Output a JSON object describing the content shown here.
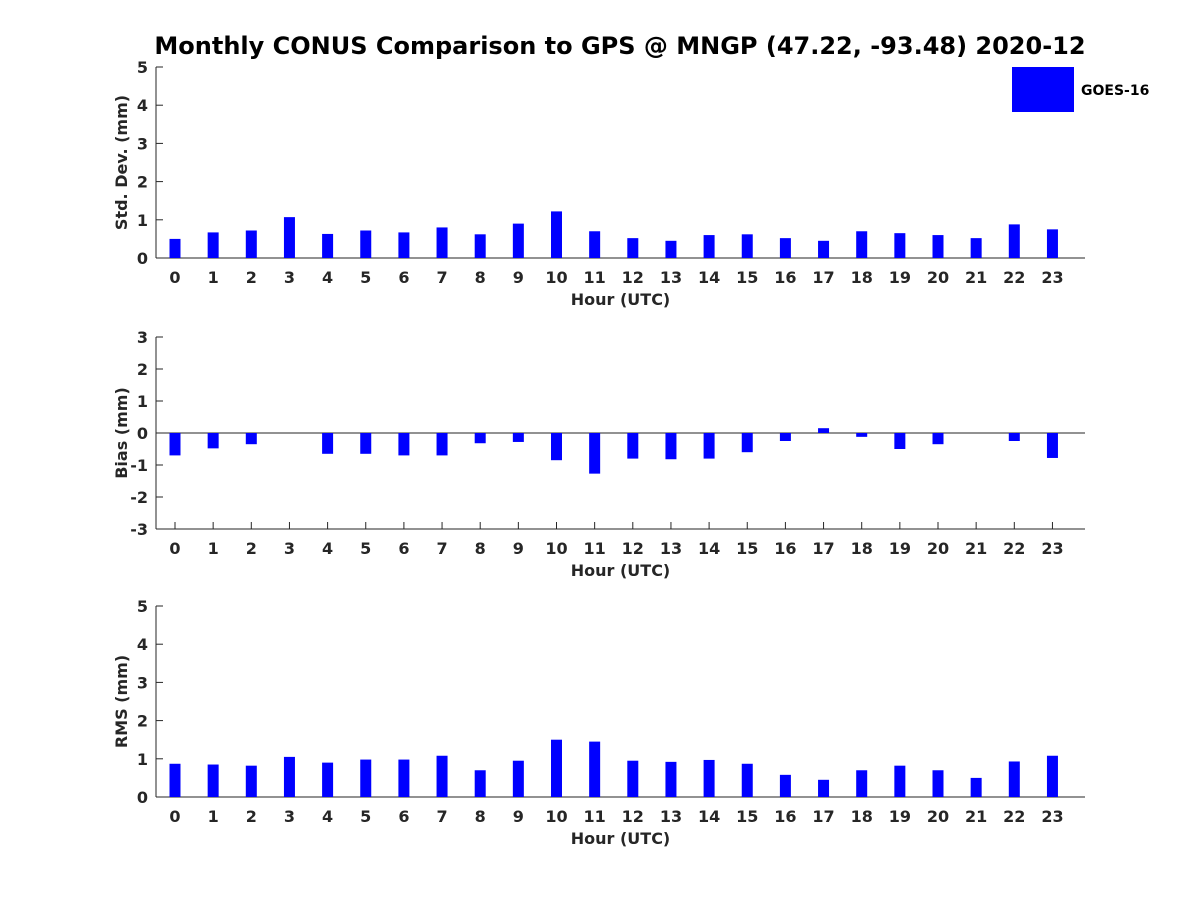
{
  "chart_data": {
    "title": "Monthly CONUS Comparison to GPS @ MNGP (47.22, -93.48) 2020-12",
    "legend": {
      "label": "GOES-16",
      "color": "#0000ff",
      "placement": "top-right"
    },
    "panels": [
      {
        "type": "bar",
        "id": "std",
        "xlabel": "Hour (UTC)",
        "ylabel": "Std. Dev. (mm)",
        "ylim": [
          0,
          5
        ],
        "yticks": [
          "0",
          "1",
          "2",
          "3",
          "4",
          "5"
        ],
        "zero_line": false,
        "categories": [
          "0",
          "1",
          "2",
          "3",
          "4",
          "5",
          "6",
          "7",
          "8",
          "9",
          "10",
          "11",
          "12",
          "13",
          "14",
          "15",
          "16",
          "17",
          "18",
          "19",
          "20",
          "21",
          "22",
          "23"
        ],
        "series": [
          {
            "name": "GOES-16",
            "values": [
              0.5,
              0.67,
              0.72,
              1.07,
              0.63,
              0.72,
              0.67,
              0.8,
              0.62,
              0.9,
              1.22,
              0.7,
              0.52,
              0.45,
              0.6,
              0.62,
              0.52,
              0.45,
              0.7,
              0.65,
              0.6,
              0.52,
              0.88,
              0.75
            ]
          }
        ]
      },
      {
        "type": "bar",
        "id": "bias",
        "xlabel": "Hour (UTC)",
        "ylabel": "Bias (mm)",
        "ylim": [
          -3,
          3
        ],
        "yticks": [
          "-3",
          "-2",
          "-1",
          "0",
          "1",
          "2",
          "3"
        ],
        "zero_line": true,
        "categories": [
          "0",
          "1",
          "2",
          "3",
          "4",
          "5",
          "6",
          "7",
          "8",
          "9",
          "10",
          "11",
          "12",
          "13",
          "14",
          "15",
          "16",
          "17",
          "18",
          "19",
          "20",
          "21",
          "22",
          "23"
        ],
        "series": [
          {
            "name": "GOES-16",
            "values": [
              -0.7,
              -0.48,
              -0.35,
              0.0,
              -0.65,
              -0.65,
              -0.7,
              -0.7,
              -0.32,
              -0.28,
              -0.85,
              -1.27,
              -0.8,
              -0.82,
              -0.8,
              -0.6,
              -0.25,
              0.15,
              -0.12,
              -0.5,
              -0.35,
              0.0,
              -0.25,
              -0.78
            ]
          }
        ]
      },
      {
        "type": "bar",
        "id": "rms",
        "xlabel": "Hour (UTC)",
        "ylabel": "RMS (mm)",
        "ylim": [
          0,
          5
        ],
        "yticks": [
          "0",
          "1",
          "2",
          "3",
          "4",
          "5"
        ],
        "zero_line": false,
        "categories": [
          "0",
          "1",
          "2",
          "3",
          "4",
          "5",
          "6",
          "7",
          "8",
          "9",
          "10",
          "11",
          "12",
          "13",
          "14",
          "15",
          "16",
          "17",
          "18",
          "19",
          "20",
          "21",
          "22",
          "23"
        ],
        "series": [
          {
            "name": "GOES-16",
            "values": [
              0.87,
              0.85,
              0.82,
              1.05,
              0.9,
              0.98,
              0.98,
              1.08,
              0.7,
              0.95,
              1.5,
              1.45,
              0.95,
              0.92,
              0.97,
              0.87,
              0.58,
              0.45,
              0.7,
              0.82,
              0.7,
              0.5,
              0.93,
              1.08
            ]
          }
        ]
      }
    ]
  }
}
